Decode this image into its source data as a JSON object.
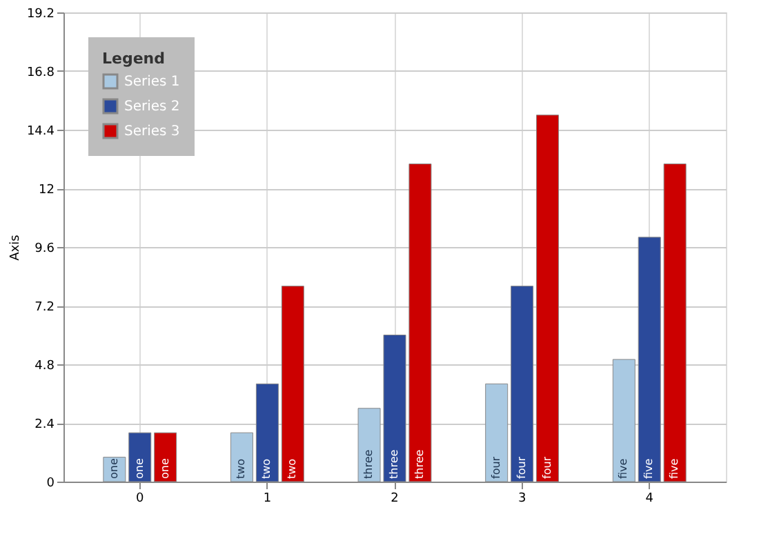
{
  "chart_data": {
    "type": "bar",
    "ylabel": "Axis",
    "legend_title": "Legend",
    "categories": [
      "0",
      "1",
      "2",
      "3",
      "4"
    ],
    "series": [
      {
        "name": "Series 1",
        "color": "#a9c9e2",
        "values": [
          1,
          2,
          3,
          4,
          5
        ],
        "value_labels": [
          "one",
          "two",
          "three",
          "four",
          "five"
        ]
      },
      {
        "name": "Series 2",
        "color": "#2b4a9b",
        "values": [
          2,
          4,
          6,
          8,
          10
        ],
        "value_labels": [
          "one",
          "two",
          "three",
          "four",
          "five"
        ]
      },
      {
        "name": "Series 3",
        "color": "#cc0000",
        "values": [
          2,
          8,
          13,
          15,
          13
        ],
        "value_labels": [
          "one",
          "two",
          "three",
          "four",
          "five"
        ]
      }
    ],
    "ylim": [
      0,
      19.2
    ],
    "yticks": [
      0,
      2.4,
      4.8,
      7.2,
      9.6,
      12,
      14.4,
      16.8,
      19.2
    ],
    "grid": true,
    "legend": "top left"
  }
}
